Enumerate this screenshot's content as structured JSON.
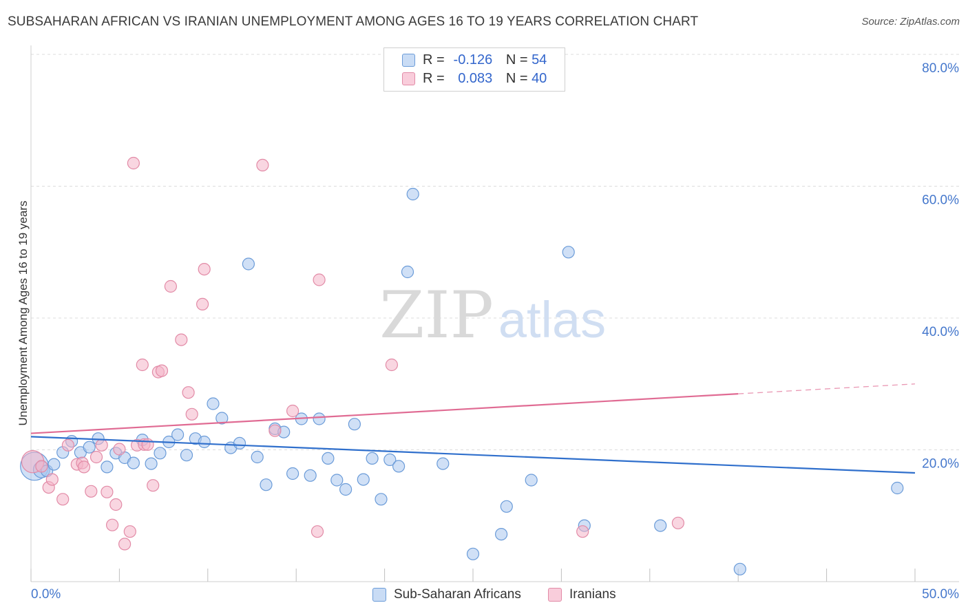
{
  "title": "SUBSAHARAN AFRICAN VS IRANIAN UNEMPLOYMENT AMONG AGES 16 TO 19 YEARS CORRELATION CHART",
  "source": "Source: ZipAtlas.com",
  "watermark": {
    "zip": "ZIP",
    "atlas": "atlas"
  },
  "stats": {
    "rows": [
      {
        "r_label": "R =",
        "r_value": "-0.126",
        "n_label": "N =",
        "n_value": "54",
        "color": "#a9c7ee"
      },
      {
        "r_label": "R =",
        "r_value": "0.083",
        "n_label": "N =",
        "n_value": "40",
        "color": "#f4b4c9"
      }
    ]
  },
  "legend": [
    {
      "label": "Sub-Saharan Africans",
      "color": "#a9c7ee"
    },
    {
      "label": "Iranians",
      "color": "#f4b4c9"
    }
  ],
  "chart_data": {
    "type": "scatter",
    "title": "SUBSAHARAN AFRICAN VS IRANIAN UNEMPLOYMENT AMONG AGES 16 TO 19 YEARS CORRELATION CHART",
    "xlabel": "",
    "ylabel": "Unemployment Among Ages 16 to 19 years",
    "xlim": [
      0,
      50
    ],
    "ylim": [
      0,
      80
    ],
    "x_tick_labels": [
      "0.0%",
      "50.0%"
    ],
    "y_ticks": [
      20,
      40,
      60,
      80
    ],
    "y_tick_labels": [
      "20.0%",
      "40.0%",
      "60.0%",
      "80.0%"
    ],
    "grid": true,
    "series": [
      {
        "name": "Sub-Saharan Africans",
        "color": "#a9c7ee",
        "stroke": "#6a9bd8",
        "trend_color": "#2f6fcc",
        "trend": {
          "x0": 0,
          "y0": 22.0,
          "x1": 50,
          "y1": 16.5
        },
        "points": [
          [
            0.2,
            17.5,
            2.4
          ],
          [
            0.6,
            17.0,
            1.4
          ],
          [
            0.9,
            16.8,
            1.0
          ],
          [
            1.3,
            17.8,
            1.0
          ],
          [
            1.8,
            19.6,
            1.0
          ],
          [
            2.3,
            21.3,
            1.0
          ],
          [
            2.8,
            19.6,
            1.0
          ],
          [
            3.3,
            20.4,
            1.0
          ],
          [
            3.8,
            21.7,
            1.0
          ],
          [
            4.3,
            17.4,
            1.0
          ],
          [
            4.8,
            19.5,
            1.0
          ],
          [
            5.3,
            18.8,
            1.0
          ],
          [
            5.8,
            18.0,
            1.0
          ],
          [
            6.3,
            21.5,
            1.0
          ],
          [
            6.8,
            17.9,
            1.0
          ],
          [
            7.3,
            19.5,
            1.0
          ],
          [
            7.8,
            21.2,
            1.0
          ],
          [
            8.3,
            22.3,
            1.0
          ],
          [
            8.8,
            19.2,
            1.0
          ],
          [
            9.3,
            21.7,
            1.0
          ],
          [
            9.8,
            21.2,
            1.0
          ],
          [
            10.3,
            27.0,
            1.0
          ],
          [
            10.8,
            24.8,
            1.0
          ],
          [
            11.3,
            20.3,
            1.0
          ],
          [
            11.8,
            21.0,
            1.0
          ],
          [
            12.3,
            48.2,
            1.0
          ],
          [
            12.8,
            18.9,
            1.0
          ],
          [
            13.3,
            14.7,
            1.0
          ],
          [
            13.8,
            23.2,
            1.0
          ],
          [
            14.3,
            22.7,
            1.0
          ],
          [
            14.8,
            16.4,
            1.0
          ],
          [
            15.3,
            24.7,
            1.0
          ],
          [
            15.8,
            16.1,
            1.0
          ],
          [
            16.3,
            24.7,
            1.0
          ],
          [
            16.8,
            18.7,
            1.0
          ],
          [
            17.3,
            15.4,
            1.0
          ],
          [
            17.8,
            14.0,
            1.0
          ],
          [
            18.3,
            23.9,
            1.0
          ],
          [
            18.8,
            15.5,
            1.0
          ],
          [
            19.3,
            18.7,
            1.0
          ],
          [
            19.8,
            12.5,
            1.0
          ],
          [
            20.3,
            18.5,
            1.0
          ],
          [
            20.8,
            17.5,
            1.0
          ],
          [
            21.3,
            47.0,
            1.0
          ],
          [
            21.6,
            58.8,
            1.0
          ],
          [
            23.3,
            17.9,
            1.0
          ],
          [
            25.0,
            4.2,
            1.0
          ],
          [
            26.6,
            7.2,
            1.0
          ],
          [
            26.9,
            11.4,
            1.0
          ],
          [
            28.3,
            15.4,
            1.0
          ],
          [
            30.4,
            50.0,
            1.0
          ],
          [
            31.3,
            8.5,
            1.0
          ],
          [
            35.6,
            8.5,
            1.0
          ],
          [
            40.1,
            1.9,
            1.0
          ],
          [
            49.0,
            14.2,
            1.0
          ]
        ]
      },
      {
        "name": "Iranians",
        "color": "#f4b4c9",
        "stroke": "#e28aa6",
        "trend_color": "#e06b93",
        "trend": {
          "x0": 0,
          "y0": 22.5,
          "x1": 40.0,
          "y1": 28.5,
          "dash_to_x": 50,
          "dash_to_y": 30.0
        },
        "points": [
          [
            0.1,
            18.2,
            1.9
          ],
          [
            0.6,
            17.5,
            1.0
          ],
          [
            1.0,
            14.3,
            1.0
          ],
          [
            1.2,
            15.5,
            1.0
          ],
          [
            1.8,
            12.5,
            1.0
          ],
          [
            2.1,
            20.7,
            1.0
          ],
          [
            2.6,
            17.8,
            1.0
          ],
          [
            2.9,
            18.0,
            1.0
          ],
          [
            3.0,
            17.4,
            1.0
          ],
          [
            3.4,
            13.7,
            1.0
          ],
          [
            3.7,
            18.9,
            1.0
          ],
          [
            4.0,
            20.7,
            1.0
          ],
          [
            4.3,
            13.6,
            1.0
          ],
          [
            4.6,
            8.6,
            1.0
          ],
          [
            4.8,
            11.7,
            1.0
          ],
          [
            5.0,
            20.1,
            1.0
          ],
          [
            5.3,
            5.7,
            1.0
          ],
          [
            5.6,
            7.6,
            1.0
          ],
          [
            5.8,
            63.5,
            1.0
          ],
          [
            6.0,
            20.7,
            1.0
          ],
          [
            6.3,
            32.9,
            1.0
          ],
          [
            6.4,
            20.8,
            1.0
          ],
          [
            6.6,
            20.8,
            1.0
          ],
          [
            6.9,
            14.6,
            1.0
          ],
          [
            7.2,
            31.8,
            1.0
          ],
          [
            7.4,
            32.0,
            1.0
          ],
          [
            7.9,
            44.8,
            1.0
          ],
          [
            8.5,
            36.7,
            1.0
          ],
          [
            8.9,
            28.7,
            1.0
          ],
          [
            9.1,
            25.4,
            1.0
          ],
          [
            9.7,
            42.1,
            1.0
          ],
          [
            9.8,
            47.4,
            1.0
          ],
          [
            13.1,
            63.2,
            1.0
          ],
          [
            13.8,
            22.9,
            1.0
          ],
          [
            14.8,
            25.9,
            1.0
          ],
          [
            16.2,
            7.6,
            1.0
          ],
          [
            16.3,
            45.8,
            1.0
          ],
          [
            20.4,
            32.9,
            1.0
          ],
          [
            31.2,
            7.6,
            1.0
          ],
          [
            36.6,
            8.9,
            1.0
          ]
        ]
      }
    ]
  }
}
